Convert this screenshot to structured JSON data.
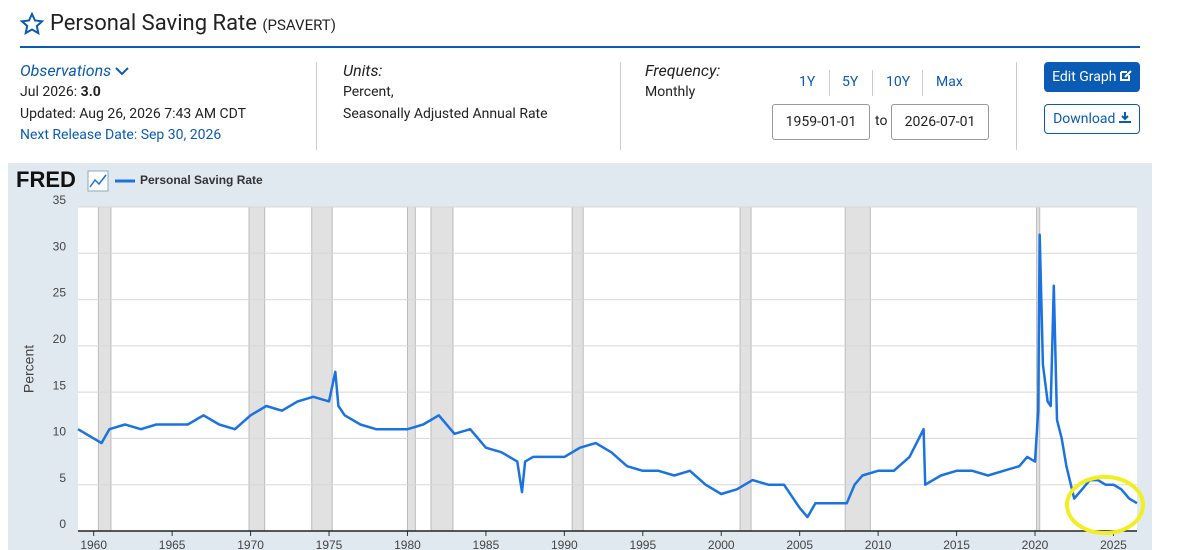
{
  "header": {
    "title": "Personal Saving Rate",
    "series_id": "(PSAVERT)"
  },
  "observations": {
    "label": "Observations",
    "period": "Jul 2026:",
    "value": "3.0",
    "updated": "Updated: Aug 26, 2026 7:43 AM CDT",
    "next_release": "Next Release Date: Sep 30, 2026"
  },
  "units": {
    "label": "Units:",
    "lines": [
      "Percent,",
      "Seasonally Adjusted Annual Rate"
    ]
  },
  "frequency": {
    "label": "Frequency:",
    "value": "Monthly"
  },
  "ranges": [
    "1Y",
    "5Y",
    "10Y",
    "Max"
  ],
  "dates": {
    "start": "1959-01-01",
    "to": "to",
    "end": "2026-07-01"
  },
  "buttons": {
    "edit": "Edit Graph",
    "download": "Download"
  },
  "logo": "FRED",
  "chart_data": {
    "type": "line",
    "y_label": "Percent",
    "x": [
      1959,
      1960,
      1960.5,
      1961,
      1962,
      1963,
      1964,
      1965,
      1966,
      1967,
      1968,
      1969,
      1970,
      1971,
      1972,
      1973,
      1974,
      1975,
      1975.4,
      1975.6,
      1976,
      1977,
      1978,
      1979,
      1980,
      1981,
      1982,
      1983,
      1984,
      1985,
      1986,
      1987,
      1987.3,
      1987.5,
      1988,
      1989,
      1990,
      1991,
      1992,
      1993,
      1994,
      1995,
      1996,
      1997,
      1998,
      1999,
      2000,
      2001,
      2002,
      2003,
      2004,
      2005,
      2005.5,
      2006,
      2007,
      2008,
      2008.5,
      2009,
      2010,
      2011,
      2012,
      2012.9,
      2013,
      2014,
      2015,
      2016,
      2017,
      2018,
      2019,
      2019.5,
      2020,
      2020.2,
      2020.3,
      2020.5,
      2020.8,
      2021,
      2021.2,
      2021.4,
      2021.7,
      2022,
      2022.5,
      2023,
      2023.5,
      2024,
      2024.5,
      2025,
      2025.5,
      2026,
      2026.5
    ],
    "series": [
      {
        "name": "Personal Saving Rate",
        "color": "#1a73e0",
        "values": [
          11,
          10,
          9.5,
          11,
          11.5,
          11,
          11.5,
          11.5,
          11.5,
          12.5,
          11.5,
          11,
          12.5,
          13.5,
          13,
          14,
          14.5,
          14,
          17.2,
          13.5,
          12.5,
          11.5,
          11,
          11,
          11,
          11.5,
          12.5,
          10.5,
          11,
          9,
          8.5,
          7.5,
          4.2,
          7.5,
          8,
          8,
          8,
          9,
          9.5,
          8.5,
          7,
          6.5,
          6.5,
          6,
          6.5,
          5,
          4,
          4.5,
          5.5,
          5,
          5,
          2.5,
          1.5,
          3,
          3,
          3,
          5,
          6,
          6.5,
          6.5,
          8,
          11,
          5,
          6,
          6.5,
          6.5,
          6,
          6.5,
          7,
          8,
          7.5,
          13,
          32,
          18,
          14,
          13.5,
          26.5,
          12,
          10,
          7,
          3.5,
          4.5,
          5.5,
          5.5,
          5,
          5,
          4.5,
          3.5,
          3.0
        ]
      }
    ],
    "recessions": [
      [
        1960.3,
        1961.1
      ],
      [
        1969.9,
        1970.9
      ],
      [
        1973.9,
        1975.2
      ],
      [
        1980.0,
        1980.5
      ],
      [
        1981.5,
        1982.9
      ],
      [
        1990.5,
        1991.2
      ],
      [
        2001.2,
        2001.9
      ],
      [
        2007.9,
        2009.5
      ],
      [
        2020.1,
        2020.3
      ]
    ],
    "xlim": [
      1959,
      2026.5
    ],
    "ylim": [
      0,
      35
    ],
    "xticks": [
      1960,
      1965,
      1970,
      1975,
      1980,
      1985,
      1990,
      1995,
      2000,
      2005,
      2010,
      2015,
      2020,
      2025
    ],
    "yticks": [
      0,
      5,
      10,
      15,
      20,
      25,
      30,
      35
    ],
    "grid": true
  }
}
